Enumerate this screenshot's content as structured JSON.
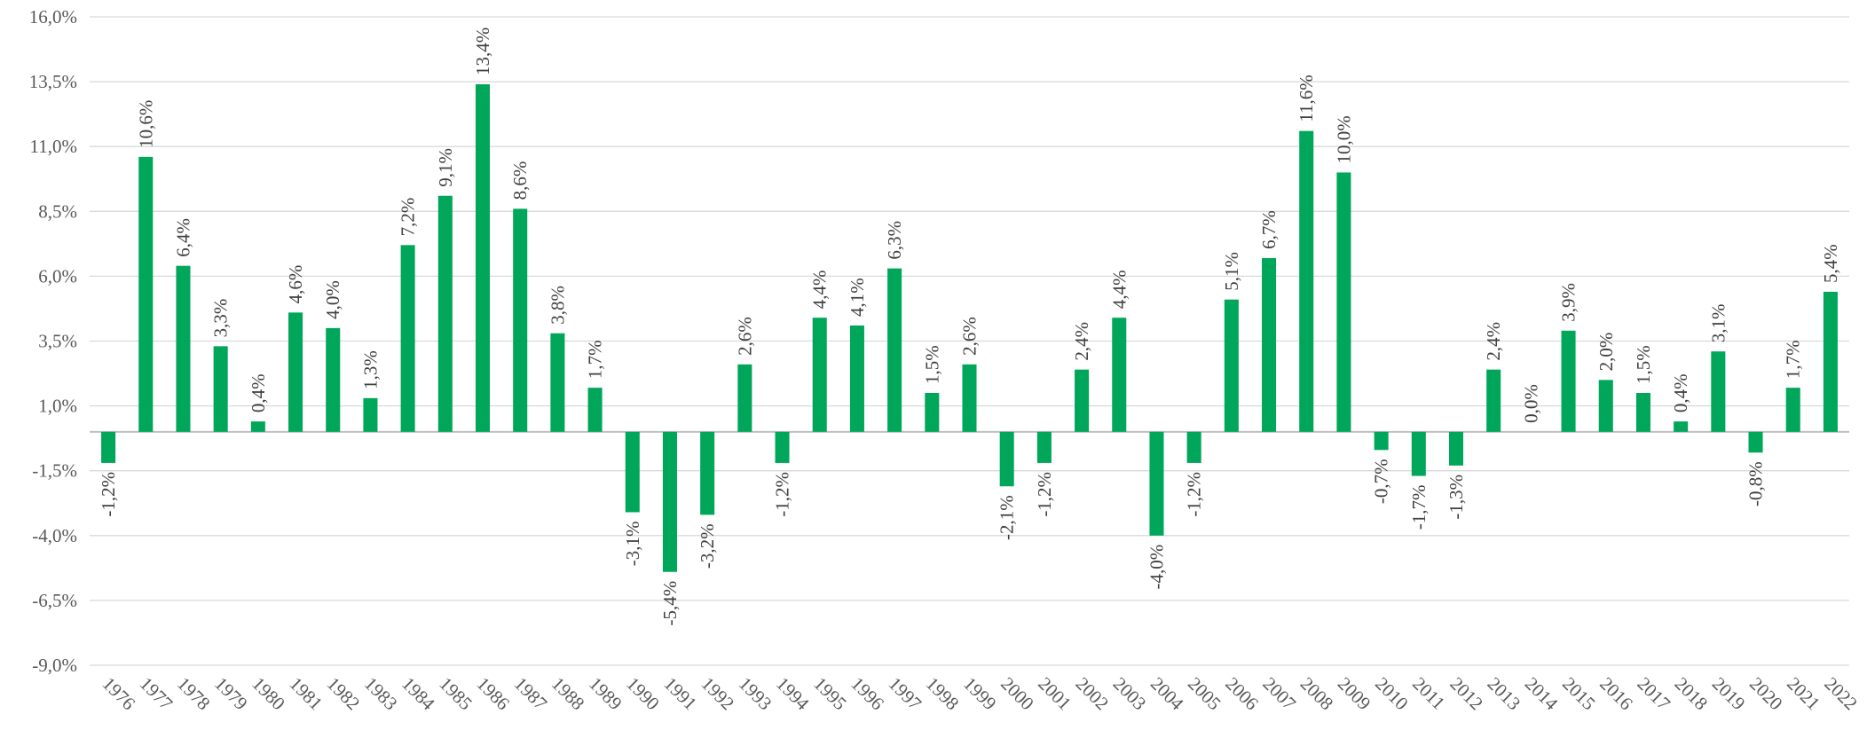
{
  "chart_data": {
    "type": "bar",
    "categories": [
      "1976",
      "1977",
      "1978",
      "1979",
      "1980",
      "1981",
      "1982",
      "1983",
      "1984",
      "1985",
      "1986",
      "1987",
      "1988",
      "1989",
      "1990",
      "1991",
      "1992",
      "1993",
      "1994",
      "1995",
      "1996",
      "1997",
      "1998",
      "1999",
      "2000",
      "2001",
      "2002",
      "2003",
      "2004",
      "2005",
      "2006",
      "2007",
      "2008",
      "2009",
      "2010",
      "2011",
      "2012",
      "2013",
      "2014",
      "2015",
      "2016",
      "2017",
      "2018",
      "2019",
      "2020",
      "2021",
      "2022"
    ],
    "values": [
      -1.2,
      10.6,
      6.4,
      3.3,
      0.4,
      4.6,
      4.0,
      1.3,
      7.2,
      9.1,
      13.4,
      8.6,
      3.8,
      1.7,
      -3.1,
      -5.4,
      -3.2,
      2.6,
      -1.2,
      4.4,
      4.1,
      6.3,
      1.5,
      2.6,
      -2.1,
      -1.2,
      2.4,
      4.4,
      -4.0,
      -1.2,
      5.1,
      6.7,
      11.6,
      10.0,
      -0.7,
      -1.7,
      -1.3,
      2.4,
      0.0,
      3.9,
      2.0,
      1.5,
      0.4,
      3.1,
      -0.8,
      1.7,
      5.4
    ],
    "value_labels": [
      "-1,2%",
      "10,6%",
      "6,4%",
      "3,3%",
      "0,4%",
      "4,6%",
      "4,0%",
      "1,3%",
      "7,2%",
      "9,1%",
      "13,4%",
      "8,6%",
      "3,8%",
      "1,7%",
      "-3,1%",
      "-5,4%",
      "-3,2%",
      "2,6%",
      "-1,2%",
      "4,4%",
      "4,1%",
      "6,3%",
      "1,5%",
      "2,6%",
      "-2,1%",
      "-1,2%",
      "2,4%",
      "4,4%",
      "-4,0%",
      "-1,2%",
      "5,1%",
      "6,7%",
      "11,6%",
      "10,0%",
      "-0,7%",
      "-1,7%",
      "-1,3%",
      "2,4%",
      "0,0%",
      "3,9%",
      "2,0%",
      "1,5%",
      "0,4%",
      "3,1%",
      "-0,8%",
      "1,7%",
      "5,4%"
    ],
    "color": "#00a65a",
    "ylim": [
      -9,
      16
    ],
    "yticks": [
      {
        "value": -9,
        "label": "-9,0%"
      },
      {
        "value": -6.5,
        "label": "-6,5%"
      },
      {
        "value": -4,
        "label": "-4,0%"
      },
      {
        "value": -1.5,
        "label": "-1,5%"
      },
      {
        "value": 1,
        "label": "1,0%"
      },
      {
        "value": 3.5,
        "label": "3,5%"
      },
      {
        "value": 6,
        "label": "6,0%"
      },
      {
        "value": 8.5,
        "label": "8,5%"
      },
      {
        "value": 11,
        "label": "11,0%"
      },
      {
        "value": 13.5,
        "label": "13,5%"
      },
      {
        "value": 16,
        "label": "16,0%"
      }
    ],
    "grid": true
  }
}
